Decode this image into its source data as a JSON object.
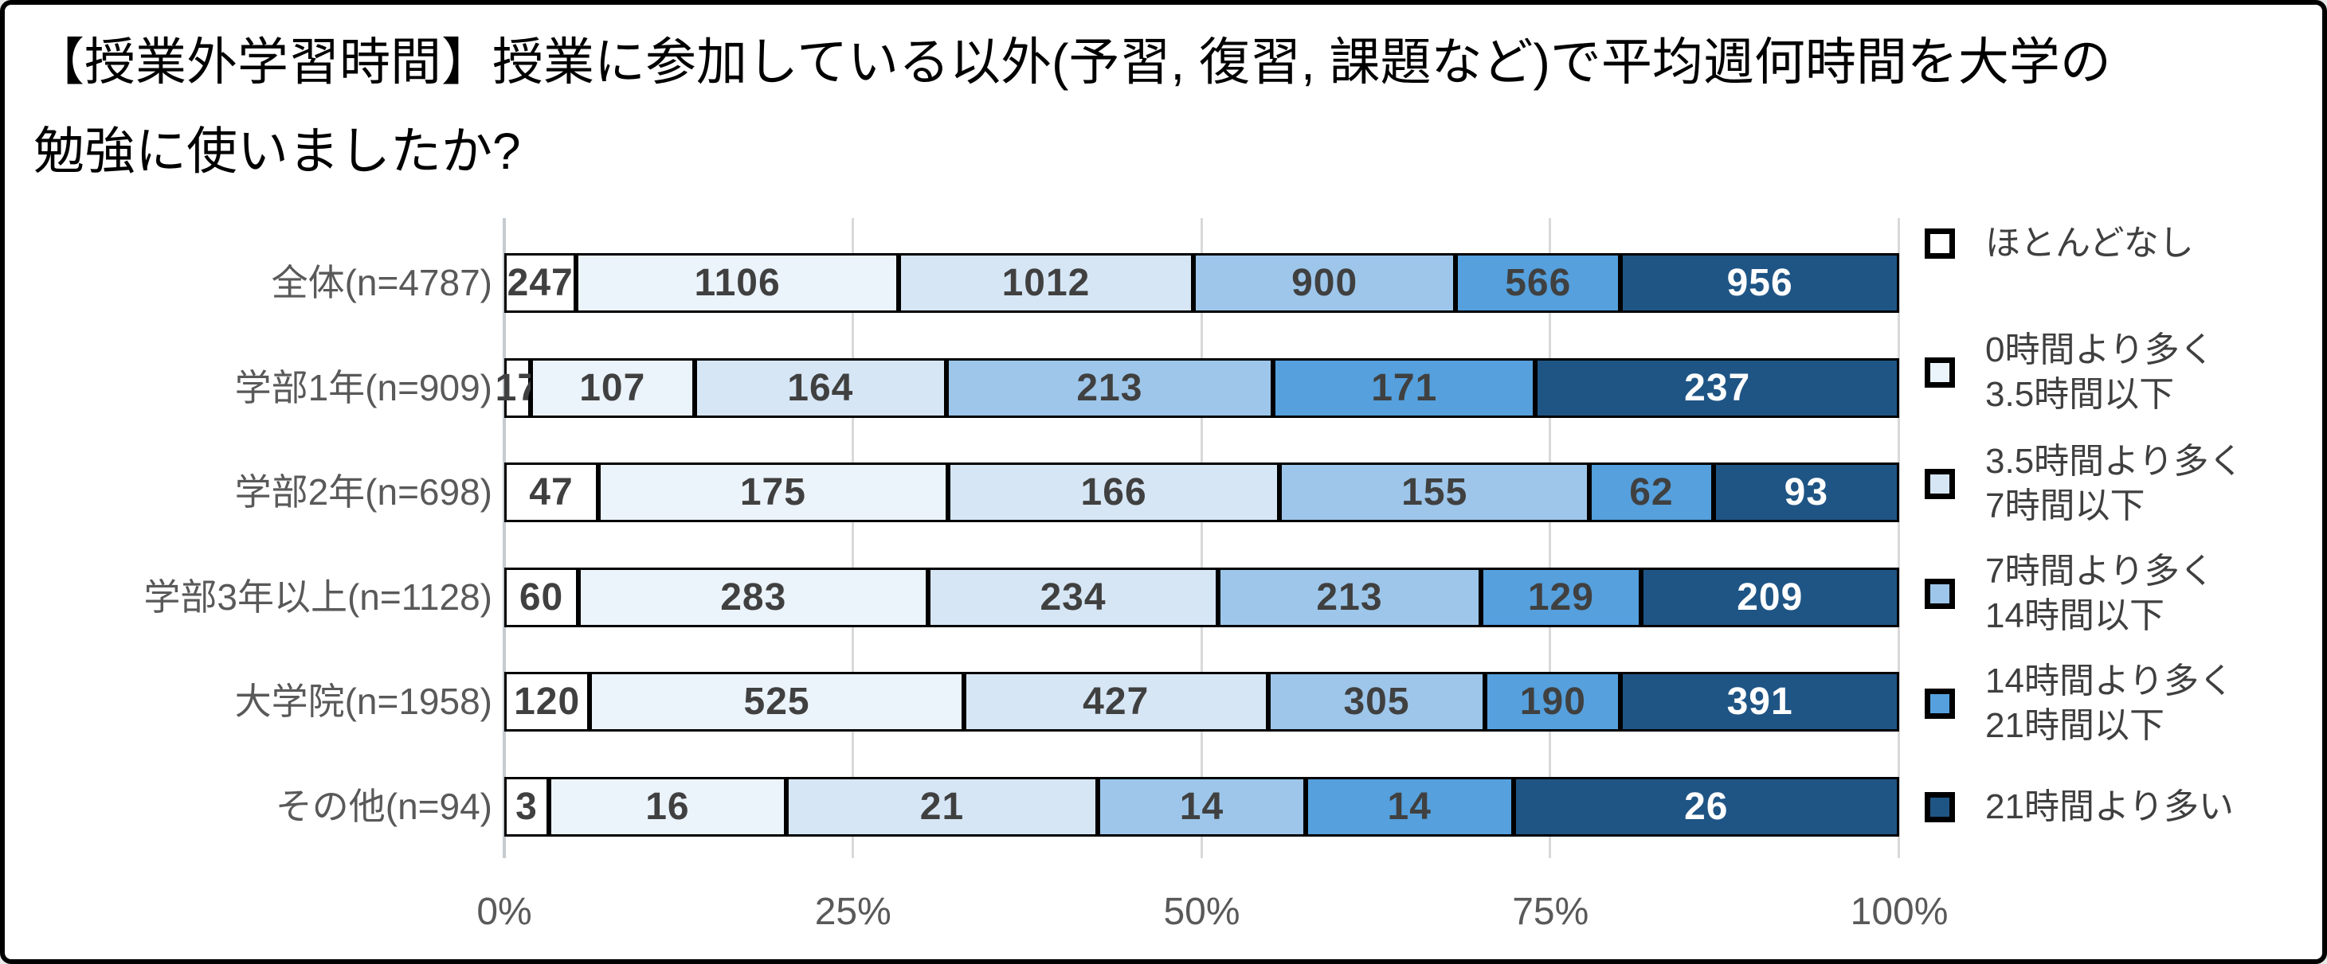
{
  "frame": {
    "background": "#FFFFFF",
    "border_color": "#000000"
  },
  "title": {
    "line1": "【授業外学習時間】授業に参加している以外(予習, 復習, 課題など)で平均週何時間を大学の",
    "line2": "勉強に使いましたか?"
  },
  "chart_data": {
    "type": "bar",
    "orientation": "horizontal",
    "stacked": true,
    "stack_mode": "100%",
    "title": "【授業外学習時間】授業に参加している以外(予習, 復習, 課題など)で平均週何時間を大学の勉強に使いましたか?",
    "categories": [
      "全体(n=4787)",
      "学部1年(n=909)",
      "学部2年(n=698)",
      "学部3年以上(n=1128)",
      "大学院(n=1958)",
      "その他(n=94)"
    ],
    "category_totals": [
      4787,
      909,
      698,
      1128,
      1958,
      94
    ],
    "series": [
      {
        "name": "ほとんどなし",
        "legend_label": "ほとんどなし",
        "color": "#FFFFFF",
        "label_color": "#404040",
        "values": [
          247,
          17,
          47,
          60,
          120,
          3
        ]
      },
      {
        "name": "0時間より多く3.5時間以下",
        "legend_label": "0時間より多く\n3.5時間以下",
        "color": "#EBF3FB",
        "label_color": "#404040",
        "values": [
          1106,
          107,
          175,
          283,
          525,
          16
        ]
      },
      {
        "name": "3.5時間より多く7時間以下",
        "legend_label": "3.5時間より多く\n7時間以下",
        "color": "#D6E6F5",
        "label_color": "#404040",
        "values": [
          1012,
          164,
          166,
          234,
          427,
          21
        ]
      },
      {
        "name": "7時間より多く14時間以下",
        "legend_label": "7時間より多く\n14時間以下",
        "color": "#9DC6EA",
        "label_color": "#404040",
        "values": [
          900,
          213,
          155,
          213,
          305,
          14
        ]
      },
      {
        "name": "14時間より多く21時間以下",
        "legend_label": "14時間より多く\n21時間以下",
        "color": "#55A0DD",
        "label_color": "#404040",
        "values": [
          566,
          171,
          62,
          129,
          190,
          14
        ]
      },
      {
        "name": "21時間より多い",
        "legend_label": "21時間より多い",
        "color": "#1F5585",
        "label_color": "#FFFFFF",
        "values": [
          956,
          237,
          93,
          209,
          391,
          26
        ]
      }
    ],
    "x_axis": {
      "ticks": [
        "0%",
        "25%",
        "50%",
        "75%",
        "100%"
      ],
      "tick_values": [
        0,
        25,
        50,
        75,
        100
      ],
      "range": [
        0,
        100
      ]
    },
    "grid": {
      "show": true,
      "color": "#D9D9D9",
      "axis_line_color": "#C6CBD1"
    },
    "legend": {
      "position": "right"
    },
    "bar_border_color": "#000000",
    "tick_label_color": "#595959",
    "category_label_color": "#595959"
  }
}
